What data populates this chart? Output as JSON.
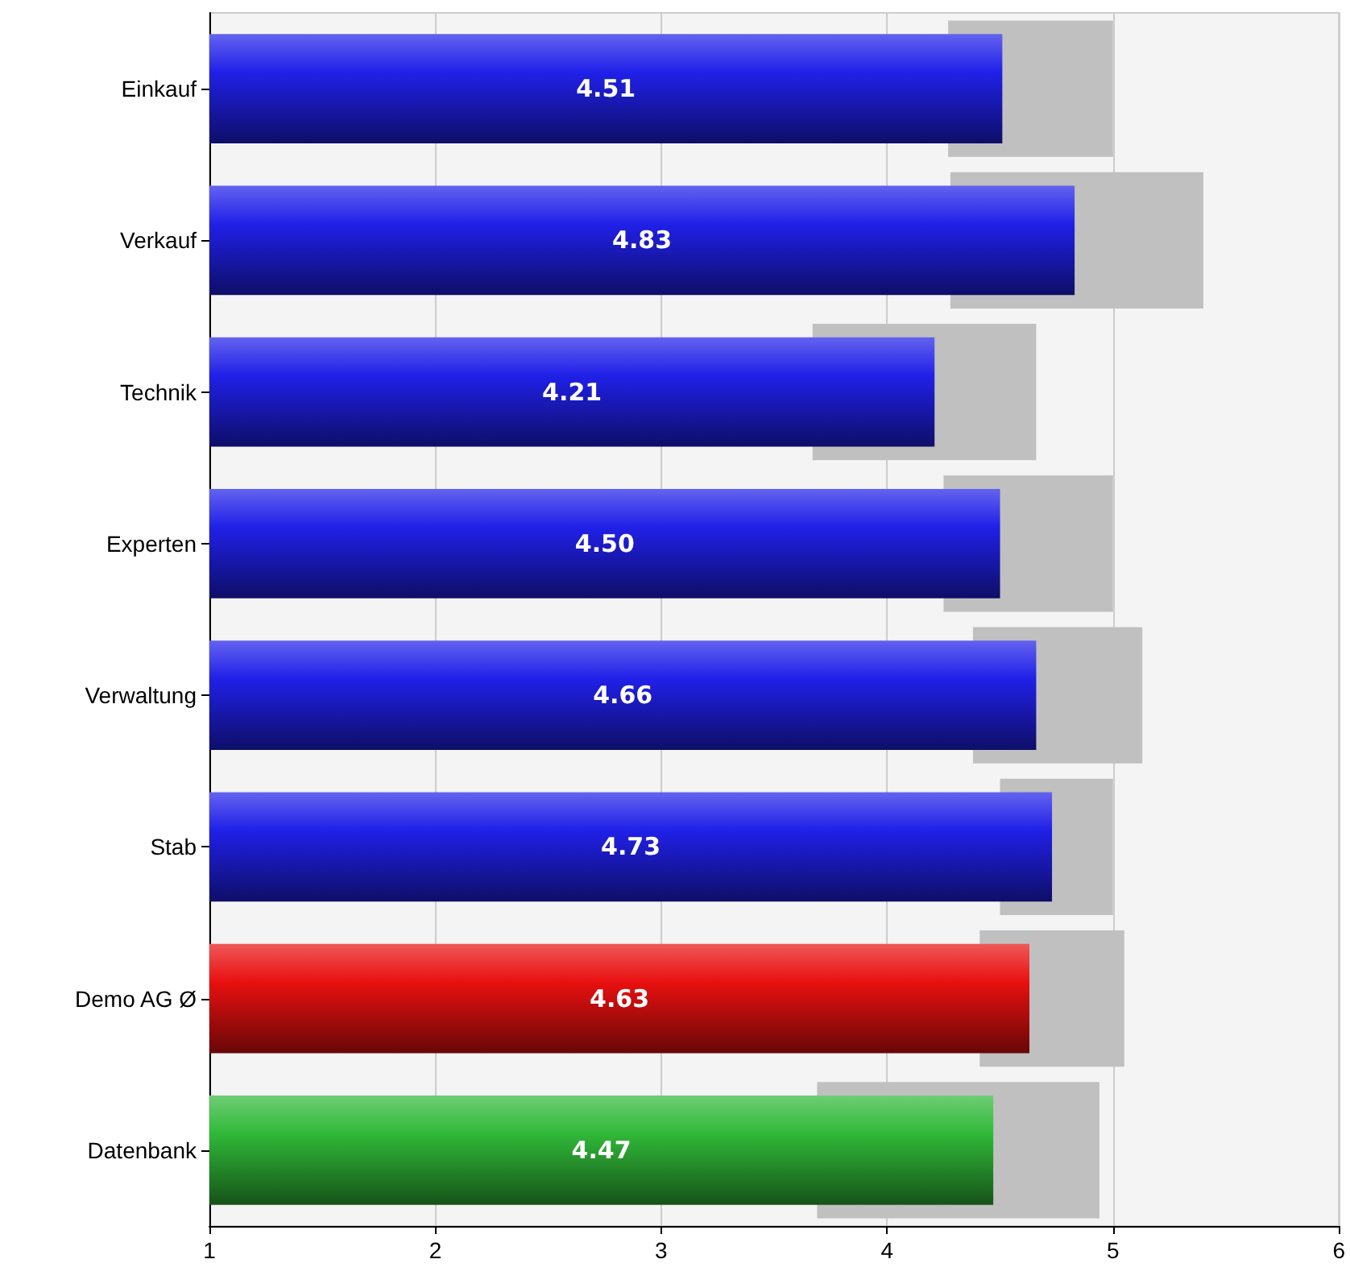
{
  "chart_data": {
    "type": "bar",
    "orientation": "horizontal",
    "categories": [
      "Einkauf",
      "Verkauf",
      "Technik",
      "Experten",
      "Verwaltung",
      "Stab",
      "Demo AG Ø",
      "Datenbank"
    ],
    "series": [
      {
        "color": "#c0c0c0",
        "base": [
          4.27,
          4.28,
          3.67,
          4.25,
          4.38,
          4.5,
          4.41,
          3.69
        ],
        "values": [
          0.73,
          1.12,
          0.99,
          0.75,
          0.75,
          0.5,
          0.64,
          1.25
        ]
      },
      {
        "colors": [
          "#2020e8",
          "#2020e8",
          "#2020e8",
          "#2020e8",
          "#2020e8",
          "#2020e8",
          "#e81010",
          "#30b838"
        ],
        "values": [
          4.51,
          4.83,
          4.21,
          4.5,
          4.66,
          4.73,
          4.63,
          4.47
        ],
        "value_labels": [
          "4.51",
          "4.83",
          "4.21",
          "4.50",
          "4.66",
          "4.73",
          "4.63",
          "4.47"
        ]
      }
    ],
    "xlim": [
      1,
      6
    ],
    "xticks": [
      1,
      2,
      3,
      4,
      5,
      6
    ],
    "grid": "x"
  }
}
